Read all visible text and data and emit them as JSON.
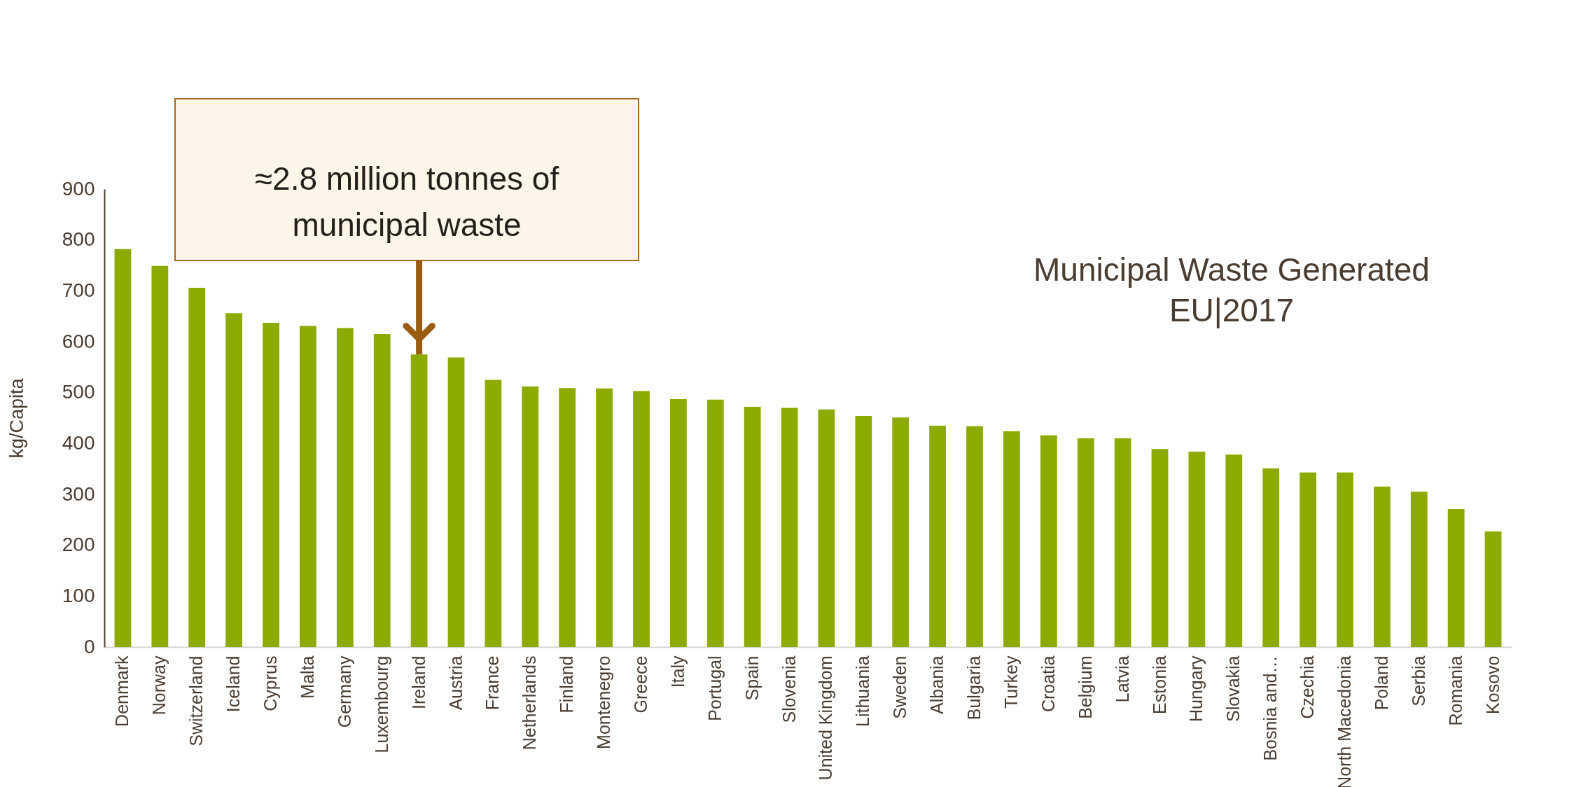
{
  "chart_data": {
    "type": "bar",
    "title": "Municipal Waste Generated EU|2017",
    "ylabel": "kg/Capita",
    "categories": [
      "Denmark",
      "Norway",
      "Switzerland",
      "Iceland",
      "Cyprus",
      "Malta",
      "Germany",
      "Luxembourg",
      "Ireland",
      "Austria",
      "France",
      "Netherlands",
      "Finland",
      "Montenegro",
      "Greece",
      "Italy",
      "Portugal",
      "Spain",
      "Slovenia",
      "United Kingdom",
      "Lithuania",
      "Sweden",
      "Albania",
      "Bulgaria",
      "Turkey",
      "Croatia",
      "Belgium",
      "Latvia",
      "Estonia",
      "Hungary",
      "Slovakia",
      "Bosnia and…",
      "Czechia",
      "North Macedonia",
      "Poland",
      "Serbia",
      "Romania",
      "Kosovo"
    ],
    "values": [
      782,
      749,
      706,
      656,
      637,
      631,
      627,
      615,
      575,
      569,
      525,
      512,
      509,
      508,
      503,
      487,
      486,
      472,
      470,
      467,
      454,
      451,
      435,
      434,
      424,
      416,
      410,
      410,
      389,
      384,
      378,
      351,
      343,
      343,
      315,
      305,
      271,
      227
    ],
    "color": "#8cab00",
    "ylim": [
      0,
      900
    ],
    "yticks": [
      0,
      100,
      200,
      300,
      400,
      500,
      600,
      700,
      800,
      900
    ],
    "annotations": [
      {
        "text": "≈2.8 million tonnes of municipal waste",
        "x": "Ireland",
        "y": 575
      }
    ]
  }
}
